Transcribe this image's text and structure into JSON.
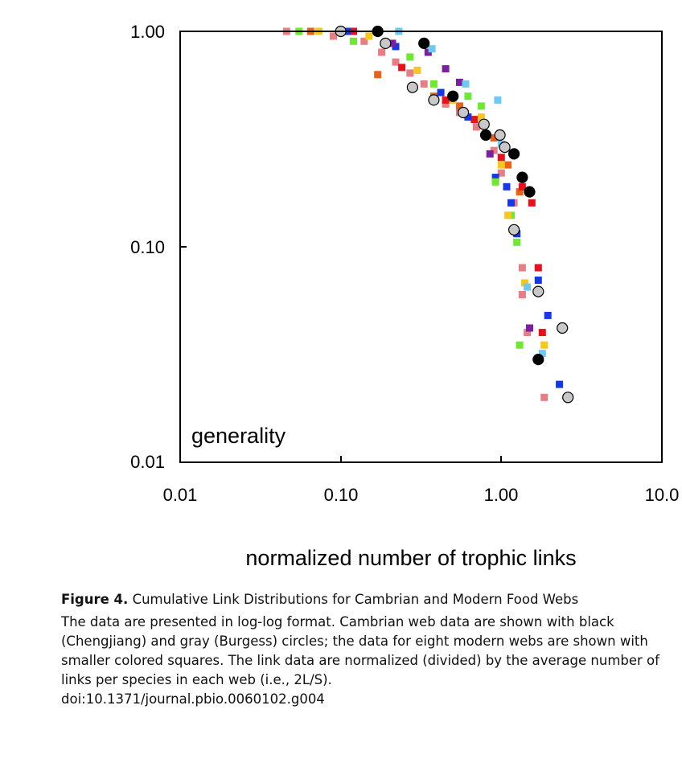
{
  "chart_data": {
    "type": "scatter",
    "xscale": "log",
    "yscale": "log",
    "xlim": [
      0.01,
      10.0
    ],
    "ylim": [
      0.01,
      1.0
    ],
    "xticks": [
      "0.01",
      "0.10",
      "1.00",
      "10.0"
    ],
    "yticks": [
      "1.00",
      "0.10",
      "0.01"
    ],
    "xlabel": "normalized number of trophic links",
    "ylabel": "",
    "panel_label": "generality",
    "legend": "none",
    "grid": false,
    "series": [
      {
        "marker": "circle",
        "color": "#000000",
        "points": [
          [
            0.17,
            1.0
          ],
          [
            0.33,
            0.88
          ],
          [
            0.5,
            0.5
          ],
          [
            0.8,
            0.33
          ],
          [
            1.2,
            0.27
          ],
          [
            1.35,
            0.21
          ],
          [
            1.5,
            0.18
          ],
          [
            1.7,
            0.03
          ]
        ]
      },
      {
        "marker": "circle",
        "color": "#c8c8c8",
        "points": [
          [
            0.1,
            1.0
          ],
          [
            0.19,
            0.88
          ],
          [
            0.28,
            0.55
          ],
          [
            0.38,
            0.48
          ],
          [
            0.58,
            0.42
          ],
          [
            0.78,
            0.37
          ],
          [
            0.98,
            0.33
          ],
          [
            1.05,
            0.29
          ],
          [
            1.2,
            0.12
          ],
          [
            1.7,
            0.062
          ],
          [
            2.4,
            0.042
          ],
          [
            2.6,
            0.02
          ]
        ]
      },
      {
        "marker": "square",
        "color": "#e87d83",
        "points": [
          [
            0.046,
            1.0
          ],
          [
            0.09,
            0.95
          ],
          [
            0.14,
            0.9
          ],
          [
            0.18,
            0.8
          ],
          [
            0.22,
            0.72
          ],
          [
            0.27,
            0.64
          ],
          [
            0.33,
            0.57
          ],
          [
            0.45,
            0.46
          ],
          [
            0.55,
            0.42
          ],
          [
            0.7,
            0.36
          ],
          [
            0.9,
            0.28
          ],
          [
            1.0,
            0.22
          ],
          [
            1.2,
            0.16
          ],
          [
            1.35,
            0.08
          ],
          [
            1.35,
            0.06
          ],
          [
            1.45,
            0.04
          ],
          [
            1.85,
            0.02
          ]
        ]
      },
      {
        "marker": "square",
        "color": "#e8621a",
        "points": [
          [
            0.065,
            1.0
          ],
          [
            0.17,
            0.63
          ],
          [
            0.38,
            0.5
          ],
          [
            0.55,
            0.45
          ],
          [
            0.9,
            0.32
          ],
          [
            1.1,
            0.24
          ],
          [
            1.3,
            0.18
          ]
        ]
      },
      {
        "marker": "square",
        "color": "#e8101a",
        "points": [
          [
            0.12,
            1.0
          ],
          [
            0.24,
            0.68
          ],
          [
            0.45,
            0.48
          ],
          [
            0.68,
            0.39
          ],
          [
            1.0,
            0.26
          ],
          [
            1.35,
            0.19
          ],
          [
            1.55,
            0.16
          ],
          [
            1.7,
            0.08
          ],
          [
            1.8,
            0.04
          ]
        ]
      },
      {
        "marker": "square",
        "color": "#1437e8",
        "points": [
          [
            0.11,
            1.0
          ],
          [
            0.22,
            0.85
          ],
          [
            0.42,
            0.52
          ],
          [
            0.62,
            0.4
          ],
          [
            0.92,
            0.21
          ],
          [
            1.08,
            0.19
          ],
          [
            1.15,
            0.16
          ],
          [
            1.25,
            0.115
          ],
          [
            1.7,
            0.07
          ],
          [
            1.95,
            0.048
          ],
          [
            2.3,
            0.023
          ]
        ]
      },
      {
        "marker": "square",
        "color": "#7a1fa0",
        "points": [
          [
            0.21,
            0.88
          ],
          [
            0.35,
            0.8
          ],
          [
            0.45,
            0.67
          ],
          [
            0.55,
            0.58
          ],
          [
            0.85,
            0.27
          ],
          [
            1.5,
            0.042
          ]
        ]
      },
      {
        "marker": "square",
        "color": "#6ee830",
        "points": [
          [
            0.055,
            1.0
          ],
          [
            0.12,
            0.9
          ],
          [
            0.27,
            0.76
          ],
          [
            0.38,
            0.57
          ],
          [
            0.62,
            0.5
          ],
          [
            0.75,
            0.45
          ],
          [
            0.92,
            0.2
          ],
          [
            1.15,
            0.14
          ],
          [
            1.25,
            0.105
          ],
          [
            1.3,
            0.035
          ]
        ]
      },
      {
        "marker": "square",
        "color": "#f5c81e",
        "points": [
          [
            0.073,
            1.0
          ],
          [
            0.15,
            0.95
          ],
          [
            0.3,
            0.66
          ],
          [
            0.5,
            0.48
          ],
          [
            0.75,
            0.4
          ],
          [
            1.0,
            0.24
          ],
          [
            1.1,
            0.14
          ],
          [
            1.4,
            0.068
          ],
          [
            1.85,
            0.035
          ]
        ]
      },
      {
        "marker": "square",
        "color": "#6ec8f0",
        "points": [
          [
            0.23,
            1.0
          ],
          [
            0.37,
            0.83
          ],
          [
            0.6,
            0.57
          ],
          [
            0.95,
            0.48
          ],
          [
            1.0,
            0.3
          ],
          [
            1.45,
            0.065
          ],
          [
            1.8,
            0.032
          ]
        ]
      }
    ]
  },
  "caption": {
    "figure_label": "Figure 4.",
    "title": "Cumulative Link Distributions for Cambrian and Modern Food Webs",
    "body": "The data are presented in log-log format. Cambrian web data are shown with black (Chengjiang) and gray (Burgess) circles; the data for eight modern webs are shown with smaller colored squares. The link data are normalized (divided) by the average number of links per species in each web (i.e., 2L/S).",
    "doi": "doi:10.1371/journal.pbio.0060102.g004"
  }
}
